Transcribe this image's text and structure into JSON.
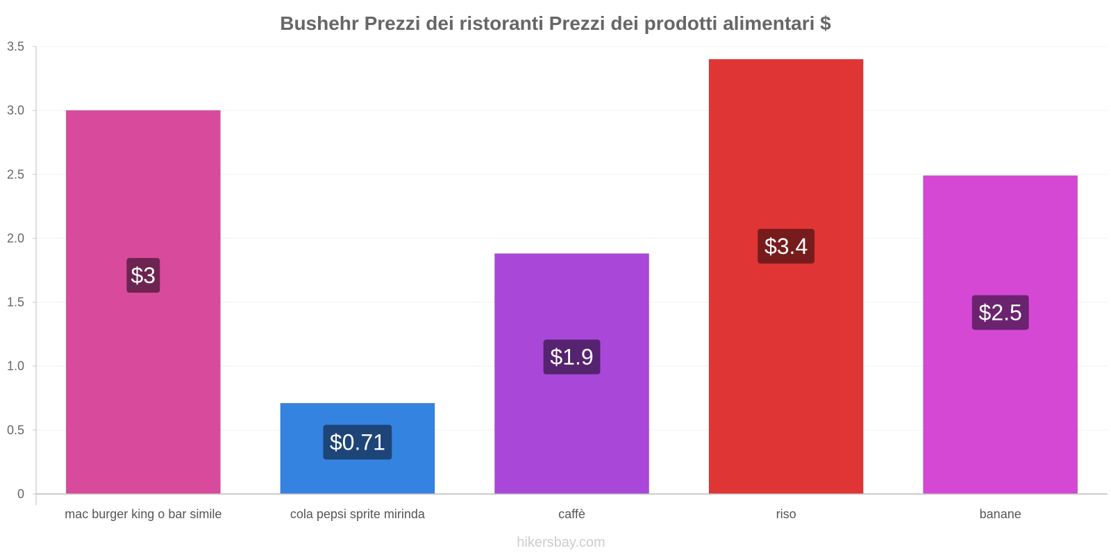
{
  "chart_data": {
    "type": "bar",
    "title": "Bushehr Prezzi dei ristoranti Prezzi dei prodotti alimentari $",
    "categories": [
      "mac burger king o bar simile",
      "cola pepsi sprite mirinda",
      "caffè",
      "riso",
      "banane"
    ],
    "values": [
      3.0,
      0.71,
      1.88,
      3.4,
      2.49
    ],
    "data_labels": [
      "$3",
      "$0.71",
      "$1.9",
      "$3.4",
      "$2.5"
    ],
    "colors": [
      "#d84a9c",
      "#3583e0",
      "#a947d9",
      "#e03535",
      "#d448d4"
    ],
    "label_bg_colors": [
      "#6e2450",
      "#1d4577",
      "#552370",
      "#771c1c",
      "#6b2370"
    ],
    "ylim": [
      0,
      3.5
    ],
    "yticks": [
      0,
      0.5,
      1.0,
      1.5,
      2.0,
      2.5,
      3.0,
      3.5
    ],
    "ytick_labels": [
      "0",
      "0.5",
      "1.0",
      "1.5",
      "2.0",
      "2.5",
      "3.0",
      "3.5"
    ],
    "xlabel": "",
    "ylabel": "",
    "grid": true
  },
  "footer": {
    "watermark": "hikersbay.com"
  }
}
